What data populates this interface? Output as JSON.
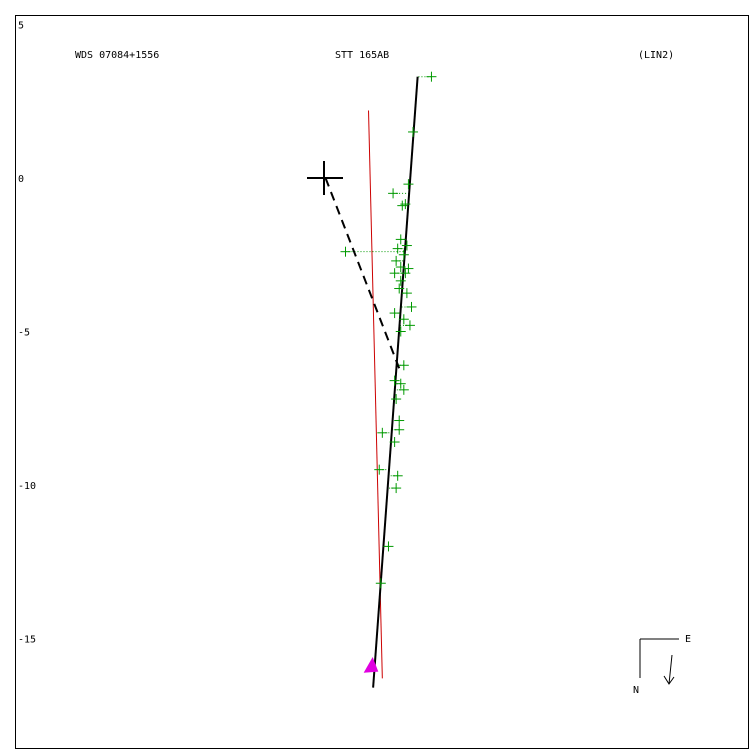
{
  "header": {
    "left": "WDS 07084+1556",
    "center": "STT 165AB",
    "right": "(LIN2)"
  },
  "compass": {
    "east_label": "E",
    "north_label": "N"
  },
  "chart_data": {
    "type": "scatter",
    "title": "",
    "xlabel": "",
    "ylabel": "",
    "ylim": [
      -17.0,
      5.3
    ],
    "xlim": [
      -10.0,
      12.0
    ],
    "y_ticks": [
      5,
      0,
      -5,
      -10,
      -15
    ],
    "y_tick_labels": [
      "5",
      "0",
      "-5",
      "-10",
      "-15"
    ],
    "grid": false,
    "legend": "none",
    "colors": {
      "observations": "#009900",
      "fitted_orbit": "#000000",
      "reference_line": "#cc0000",
      "primary_star": "#000000",
      "periastron_marker": "#e000e0",
      "residual_lines": "#009900",
      "node_line": "#000000"
    },
    "primary_star": {
      "x": 0,
      "y": 0
    },
    "fitted_orbit": [
      [
        3.05,
        3.3
      ],
      [
        1.6,
        -16.6
      ]
    ],
    "reference_line": [
      [
        1.45,
        2.2
      ],
      [
        1.9,
        -16.3
      ]
    ],
    "node_line": [
      [
        0.05,
        0.0
      ],
      [
        2.45,
        -6.2
      ]
    ],
    "periastron_marker": {
      "x": 1.55,
      "y": -15.9
    },
    "observations": [
      [
        3.5,
        3.3
      ],
      [
        2.9,
        1.5
      ],
      [
        2.25,
        -0.5
      ],
      [
        2.75,
        -0.2
      ],
      [
        2.65,
        -0.85
      ],
      [
        2.55,
        -0.9
      ],
      [
        0.7,
        -2.4
      ],
      [
        2.5,
        -2.0
      ],
      [
        2.7,
        -2.2
      ],
      [
        2.4,
        -2.3
      ],
      [
        2.6,
        -2.5
      ],
      [
        2.35,
        -2.7
      ],
      [
        2.5,
        -2.9
      ],
      [
        2.75,
        -2.95
      ],
      [
        2.3,
        -3.1
      ],
      [
        2.65,
        -3.1
      ],
      [
        2.5,
        -3.35
      ],
      [
        2.45,
        -3.6
      ],
      [
        2.7,
        -3.75
      ],
      [
        2.85,
        -4.2
      ],
      [
        2.3,
        -4.4
      ],
      [
        2.6,
        -4.6
      ],
      [
        2.8,
        -4.8
      ],
      [
        2.5,
        -5.0
      ],
      [
        2.6,
        -6.1
      ],
      [
        2.3,
        -6.6
      ],
      [
        2.5,
        -6.7
      ],
      [
        2.6,
        -6.9
      ],
      [
        2.35,
        -7.2
      ],
      [
        2.45,
        -7.9
      ],
      [
        2.45,
        -8.2
      ],
      [
        1.9,
        -8.3
      ],
      [
        2.3,
        -8.6
      ],
      [
        1.8,
        -9.5
      ],
      [
        2.4,
        -9.7
      ],
      [
        2.35,
        -10.1
      ],
      [
        2.1,
        -12.0
      ],
      [
        1.85,
        -13.2
      ]
    ]
  }
}
